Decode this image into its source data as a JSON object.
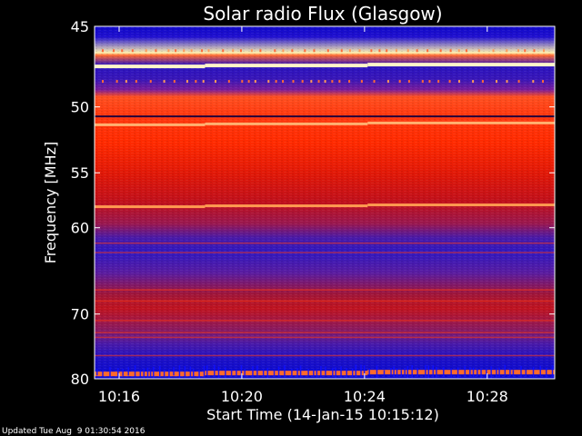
{
  "chart_data": {
    "type": "heatmap",
    "title": "Solar radio Flux (Glasgow)",
    "xlabel": "Start Time (14-Jan-15 10:15:12)",
    "ylabel": "Frequency [MHz]",
    "x_tick_labels": [
      "10:16",
      "10:20",
      "10:24",
      "10:28"
    ],
    "x_tick_minutes": [
      16,
      20,
      24,
      28
    ],
    "x_range_minutes": [
      15.2,
      30.2
    ],
    "y_tick_labels": [
      "45",
      "50",
      "55",
      "60",
      "70",
      "80"
    ],
    "y_tick_values": [
      45,
      50,
      55,
      60,
      70,
      80
    ],
    "y_range": [
      45,
      80
    ],
    "y_scale": "reciprocal",
    "colormap": [
      "#0000b0",
      "#3a1ad0",
      "#7a20a0",
      "#c0102a",
      "#ff2a00",
      "#ff8a3a",
      "#fff4c8"
    ],
    "segment_breaks_minutes": [
      18.8,
      24.1
    ],
    "bright_bands_mhz": [
      47.3,
      51.2,
      57.9,
      79.0
    ],
    "footer": "Updated Tue Aug  9 01:30:54 2016"
  }
}
